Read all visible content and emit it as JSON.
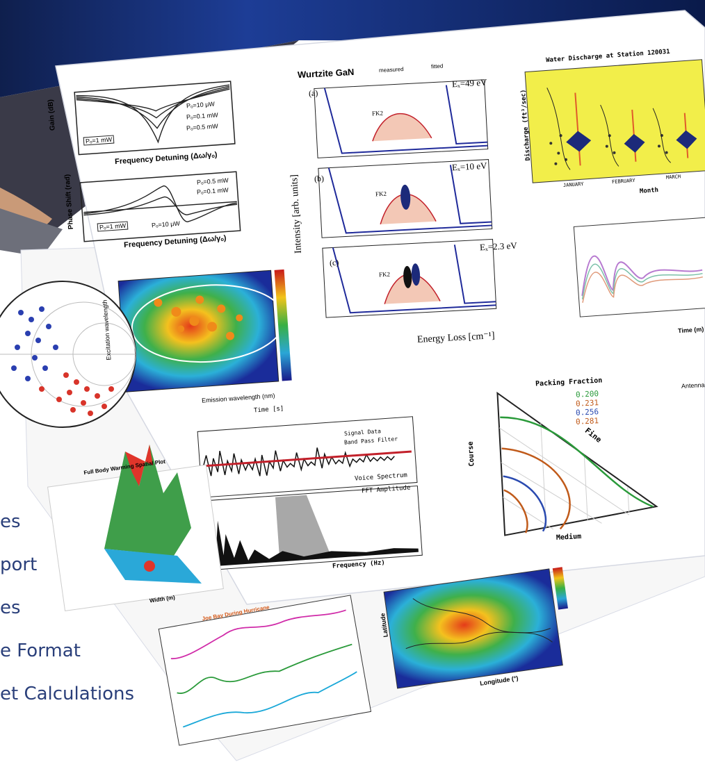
{
  "bullets": [
    {
      "text": "es"
    },
    {
      "text": "port"
    },
    {
      "text": "es"
    },
    {
      "text": "e Format"
    },
    {
      "text": "et Calculations"
    }
  ],
  "panels": {
    "gain": {
      "ylabel": "Gain (dB)",
      "xlabel": "Frequency Detuning (Δω/γₒ)",
      "legend": [
        "Pₒ=10 μW",
        "Pₒ=0.1 mW",
        "Pₒ=0.5 mW",
        "Pₒ=1 mW"
      ]
    },
    "phase": {
      "ylabel": "Phase Shift (rad)",
      "xlabel": "Frequency Detuning (Δω/γₒ)",
      "legend": [
        "Pₒ=0.5 mW",
        "Pₒ=0.1 mW",
        "Pₒ=10 μW",
        "Pₒ=1 mW"
      ]
    },
    "contour": {
      "ylabel": "Excitation wavelength",
      "xlabel": "Emission wavelength (nm)"
    },
    "raman": {
      "title": "Wurtzite GaN",
      "legend_measured": "measured",
      "legend_fitted": "fitted",
      "panel_a": "(a)",
      "panel_b": "(b)",
      "panel_c": "(c)",
      "energy_a": "Eₓ=49 eV",
      "energy_b": "Eₓ=10 eV",
      "energy_c": "Eₓ=2.3 eV",
      "inset": "FK2",
      "ylabel": "Intensity [arb. units]",
      "xlabel": "Energy Loss [cm⁻¹]"
    },
    "water": {
      "title": "Water Discharge at Station 120031",
      "ylabel": "Discharge (ft³/sec)",
      "xlabel": "Month",
      "months": [
        "JANUARY",
        "FEBRUARY",
        "MARCH"
      ]
    },
    "time_series": {
      "xlabel": "Time (m)"
    },
    "signal": {
      "top_axis": "Time [s]",
      "legend": [
        "Signal Data",
        "Band Pass Filter"
      ],
      "subtitle": "Voice Spectrum",
      "fft_title": "FFT Amplitude",
      "xlabel": "Frequency (Hz)"
    },
    "ternary": {
      "title": "Packing Fraction",
      "values": [
        "0.200",
        "0.231",
        "0.256",
        "0.281"
      ],
      "left_axis": "Course",
      "right_axis": "Fine",
      "bottom_axis": "Medium"
    },
    "surface": {
      "title": "Full Body Warming Spatial Plot",
      "xlabel": "Width (m)"
    },
    "jolly": {
      "title": "Joe Bay During Hurricane"
    },
    "map": {
      "xlabel": "Longitude (°)",
      "ylabel": "Latitude"
    },
    "side": {
      "label": "Antenna"
    }
  },
  "colors": {
    "banner": "#1b3a8c",
    "yellow_panel": "#f2ee4a",
    "navy_diamond": "#1c2a7a",
    "red_trace": "#c2202a",
    "blue_trace": "#2a3fb0",
    "green_contour": "#2a9a3a",
    "orange_contour": "#c05a1a",
    "blue_contour": "#2a4ab0"
  }
}
